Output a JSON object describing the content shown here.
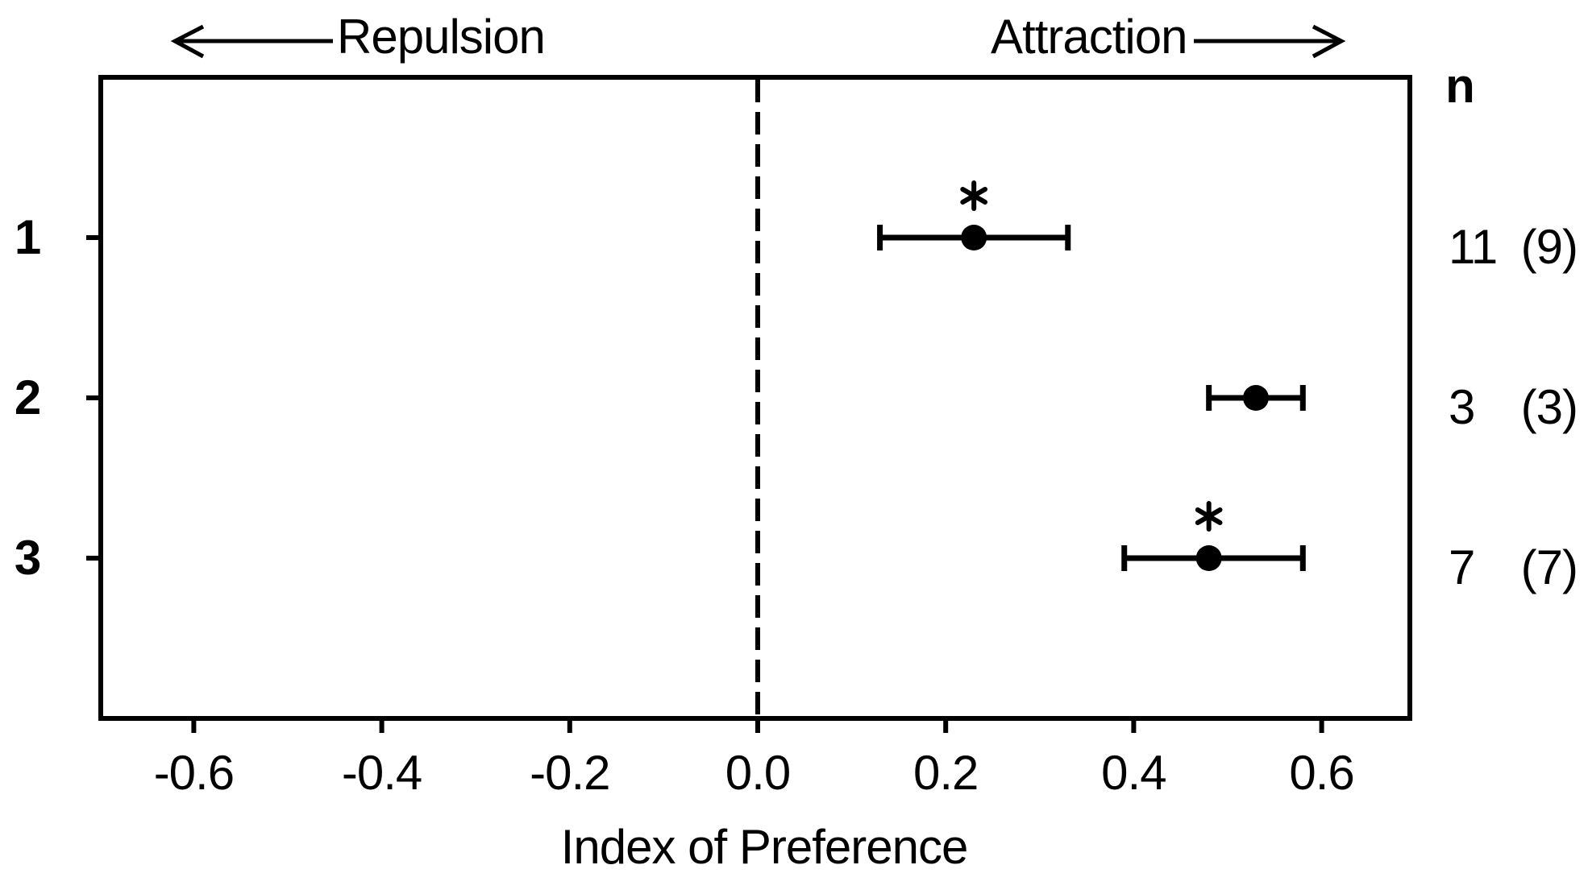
{
  "chart_data": {
    "type": "scatter",
    "subtype": "horizontal-dot-plot-with-error-bars",
    "xlabel": "Index of Preference",
    "xlim": [
      -0.7,
      0.7
    ],
    "x_ticks": [
      -0.6,
      -0.4,
      -0.2,
      0.0,
      0.2,
      0.4,
      0.6
    ],
    "x_tick_labels": [
      "-0.6",
      "-0.4",
      "-0.2",
      "0.0",
      "0.2",
      "0.4",
      "0.6"
    ],
    "zero_reference_line": {
      "x": 0.0,
      "style": "dashed"
    },
    "direction_annotations": {
      "left": "Repulsion",
      "right": "Attraction"
    },
    "n_column_header": "n",
    "rows": [
      {
        "label": "1",
        "mean": 0.23,
        "ci_low": 0.13,
        "ci_high": 0.33,
        "significant": true,
        "significance_marker": "*",
        "n": "11",
        "n_paren": "(9)"
      },
      {
        "label": "2",
        "mean": 0.53,
        "ci_low": 0.48,
        "ci_high": 0.58,
        "significant": false,
        "significance_marker": "",
        "n": "3",
        "n_paren": "(3)"
      },
      {
        "label": "3",
        "mean": 0.48,
        "ci_low": 0.39,
        "ci_high": 0.58,
        "significant": true,
        "significance_marker": "*",
        "n": "7",
        "n_paren": "(7)"
      }
    ],
    "grid": "off",
    "legend": "none",
    "colors": {
      "foreground": "#000000",
      "background": "#ffffff"
    }
  }
}
